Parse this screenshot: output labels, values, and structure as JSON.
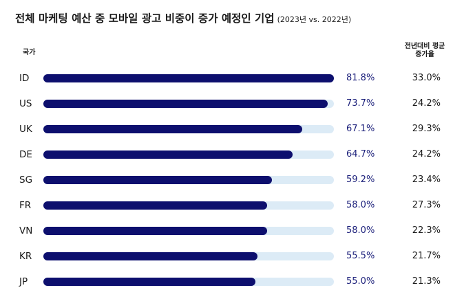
{
  "header": {
    "title": "전체 마케팅 예산 중 모바일 광고 비중이 증가 예정인 기업",
    "subtitle": "(2023년 vs. 2022년)"
  },
  "columns": {
    "country": "국가",
    "growth_line1": "전년대비 평균",
    "growth_line2": "증가율"
  },
  "colors": {
    "bar": "#0d0f6e",
    "track": "#dcebf6",
    "value_text": "#1b1f7a"
  },
  "chart_data": {
    "type": "bar",
    "orientation": "horizontal",
    "title": "전체 마케팅 예산 중 모바일 광고 비중이 증가 예정인 기업",
    "subtitle": "(2023년 vs. 2022년)",
    "categories": [
      "ID",
      "US",
      "UK",
      "DE",
      "SG",
      "FR",
      "VN",
      "KR",
      "JP"
    ],
    "values": [
      81.8,
      73.7,
      67.1,
      64.7,
      59.2,
      58.0,
      58.0,
      55.5,
      55.0
    ],
    "value_labels": [
      "81.8%",
      "73.7%",
      "67.1%",
      "64.7%",
      "59.2%",
      "58.0%",
      "58.0%",
      "55.5%",
      "55.0%"
    ],
    "growth_values": [
      33.0,
      24.2,
      29.3,
      24.2,
      23.4,
      27.3,
      22.3,
      21.7,
      21.3
    ],
    "growth_labels": [
      "33.0%",
      "24.2%",
      "29.3%",
      "24.2%",
      "23.4%",
      "27.3%",
      "22.3%",
      "21.7%",
      "21.3%"
    ],
    "xlim": [
      0,
      100
    ],
    "grid": false,
    "legend": "none"
  }
}
